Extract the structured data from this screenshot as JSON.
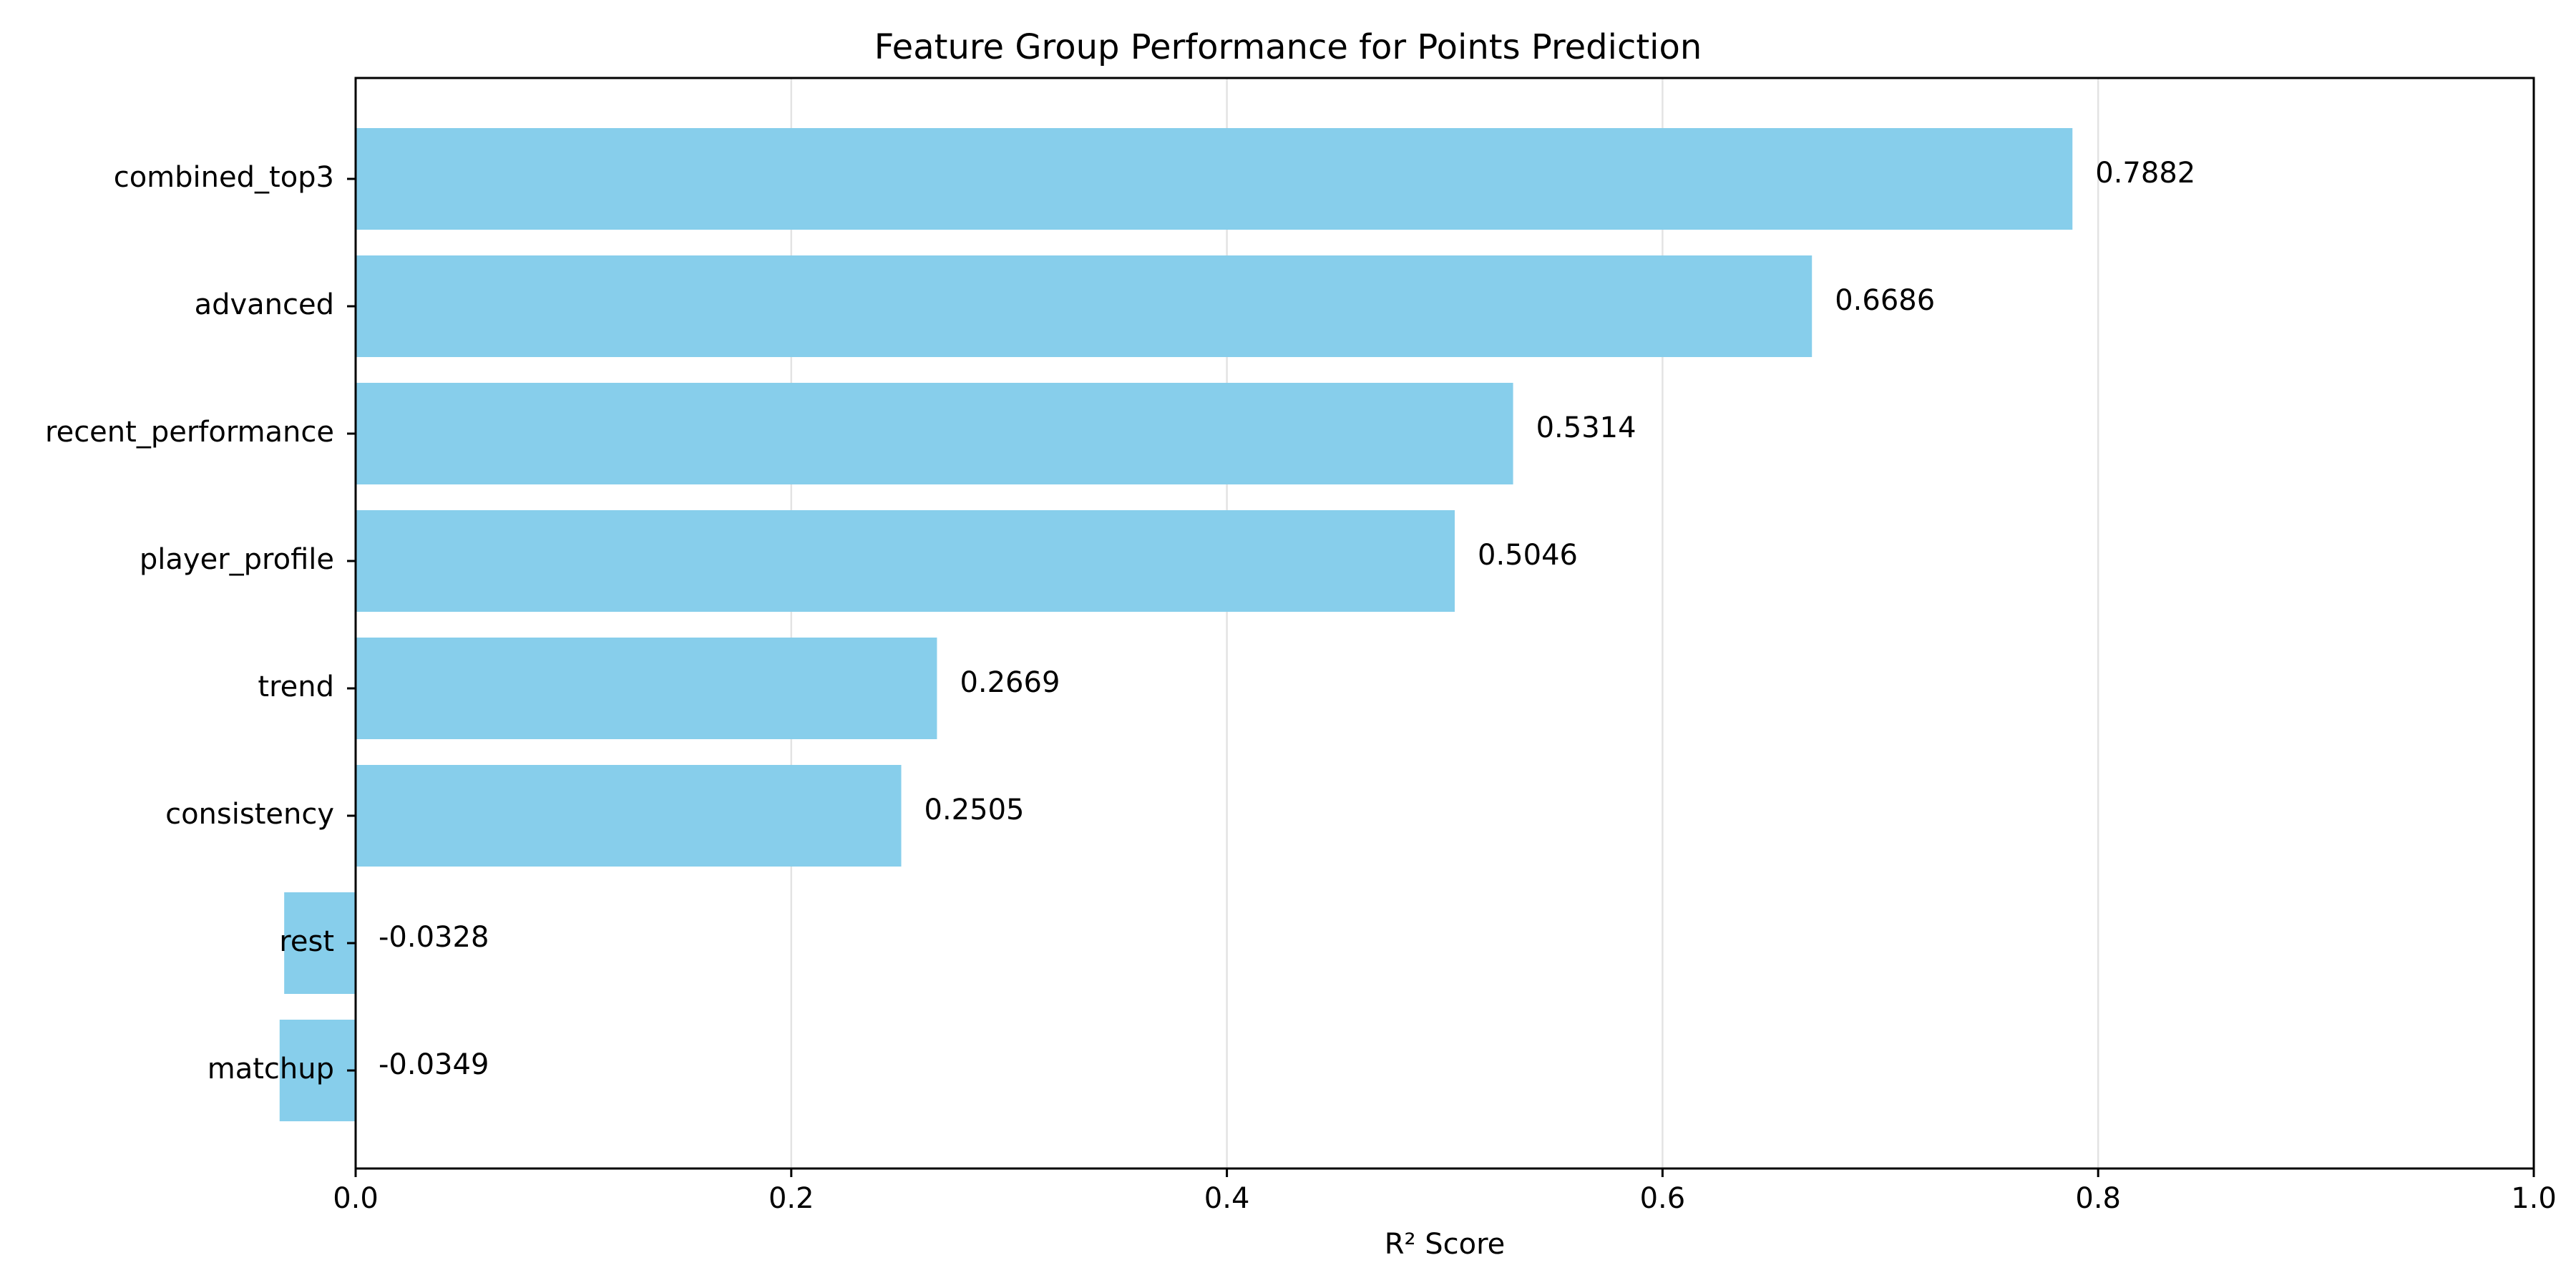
{
  "chart_data": {
    "type": "bar",
    "orientation": "horizontal",
    "title": "Feature Group Performance for Points Prediction",
    "xlabel": "R² Score",
    "ylabel": "",
    "xlim": [
      0.0,
      1.0
    ],
    "xticks": [
      0.0,
      0.2,
      0.4,
      0.6,
      0.8,
      1.0
    ],
    "xtick_labels": [
      "0.0",
      "0.2",
      "0.4",
      "0.6",
      "0.8",
      "1.0"
    ],
    "categories": [
      "combined_top3",
      "advanced",
      "recent_performance",
      "player_profile",
      "trend",
      "consistency",
      "rest",
      "matchup"
    ],
    "values": [
      0.7882,
      0.6686,
      0.5314,
      0.5046,
      0.2669,
      0.2505,
      -0.0328,
      -0.0349
    ],
    "value_labels": [
      "0.7882",
      "0.6686",
      "0.5314",
      "0.5046",
      "0.2669",
      "0.2505",
      "-0.0328",
      "-0.0349"
    ],
    "grid": "x-axis only",
    "legend": "none",
    "bar_color": "#87ceeb"
  }
}
